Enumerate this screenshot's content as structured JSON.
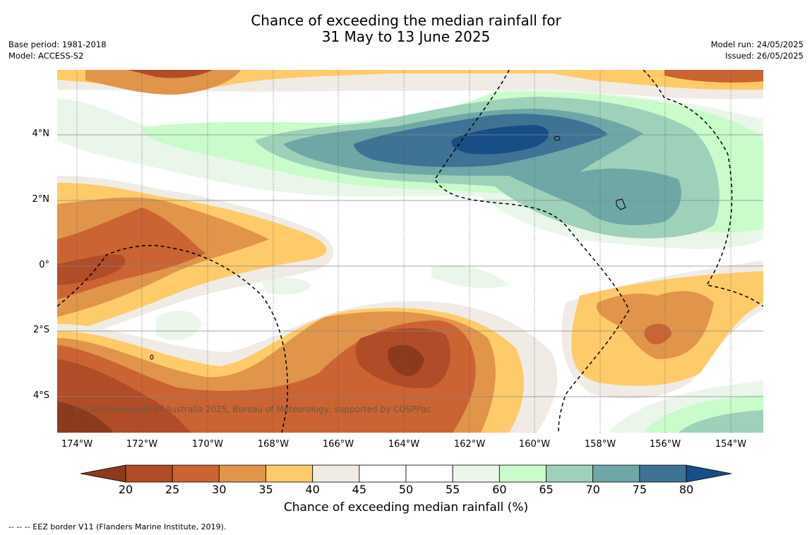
{
  "title_line1": "Chance of exceeding the median rainfall for",
  "title_line2": "31 May to 13 June 2025",
  "base_period": "Base period: 1981-2018",
  "model": "Model: ACCESS-S2",
  "model_run": "Model run: 24/05/2025",
  "issued": "Issued: 26/05/2025",
  "copyright": "© Commonwealth of Australia 2025, Bureau of Meteorology, supported by COSPPac",
  "colorbar": {
    "label": "Chance of exceeding median rainfall (%)",
    "ticks": [
      "20",
      "25",
      "30",
      "35",
      "40",
      "45",
      "50",
      "55",
      "60",
      "65",
      "70",
      "75",
      "80"
    ],
    "colors": [
      "#8c3a1e",
      "#b04c27",
      "#cb6333",
      "#e0954a",
      "#fecb6a",
      "#f0ebe5",
      "#ffffff",
      "#ffffff",
      "#eaf6ea",
      "#c9fbcb",
      "#9dd1b9",
      "#6fa7a7",
      "#3e7396",
      "#184e86"
    ]
  },
  "footnote": "-- -- -- EEZ border V11 (Flanders Marine Institute, 2019).",
  "axes": {
    "y_labels": [
      "4°N",
      "2°N",
      "0°",
      "2°S",
      "4°S"
    ],
    "x_labels": [
      "174°W",
      "172°W",
      "170°W",
      "168°W",
      "166°W",
      "164°W",
      "162°W",
      "160°W",
      "158°W",
      "156°W",
      "154°W"
    ]
  }
}
